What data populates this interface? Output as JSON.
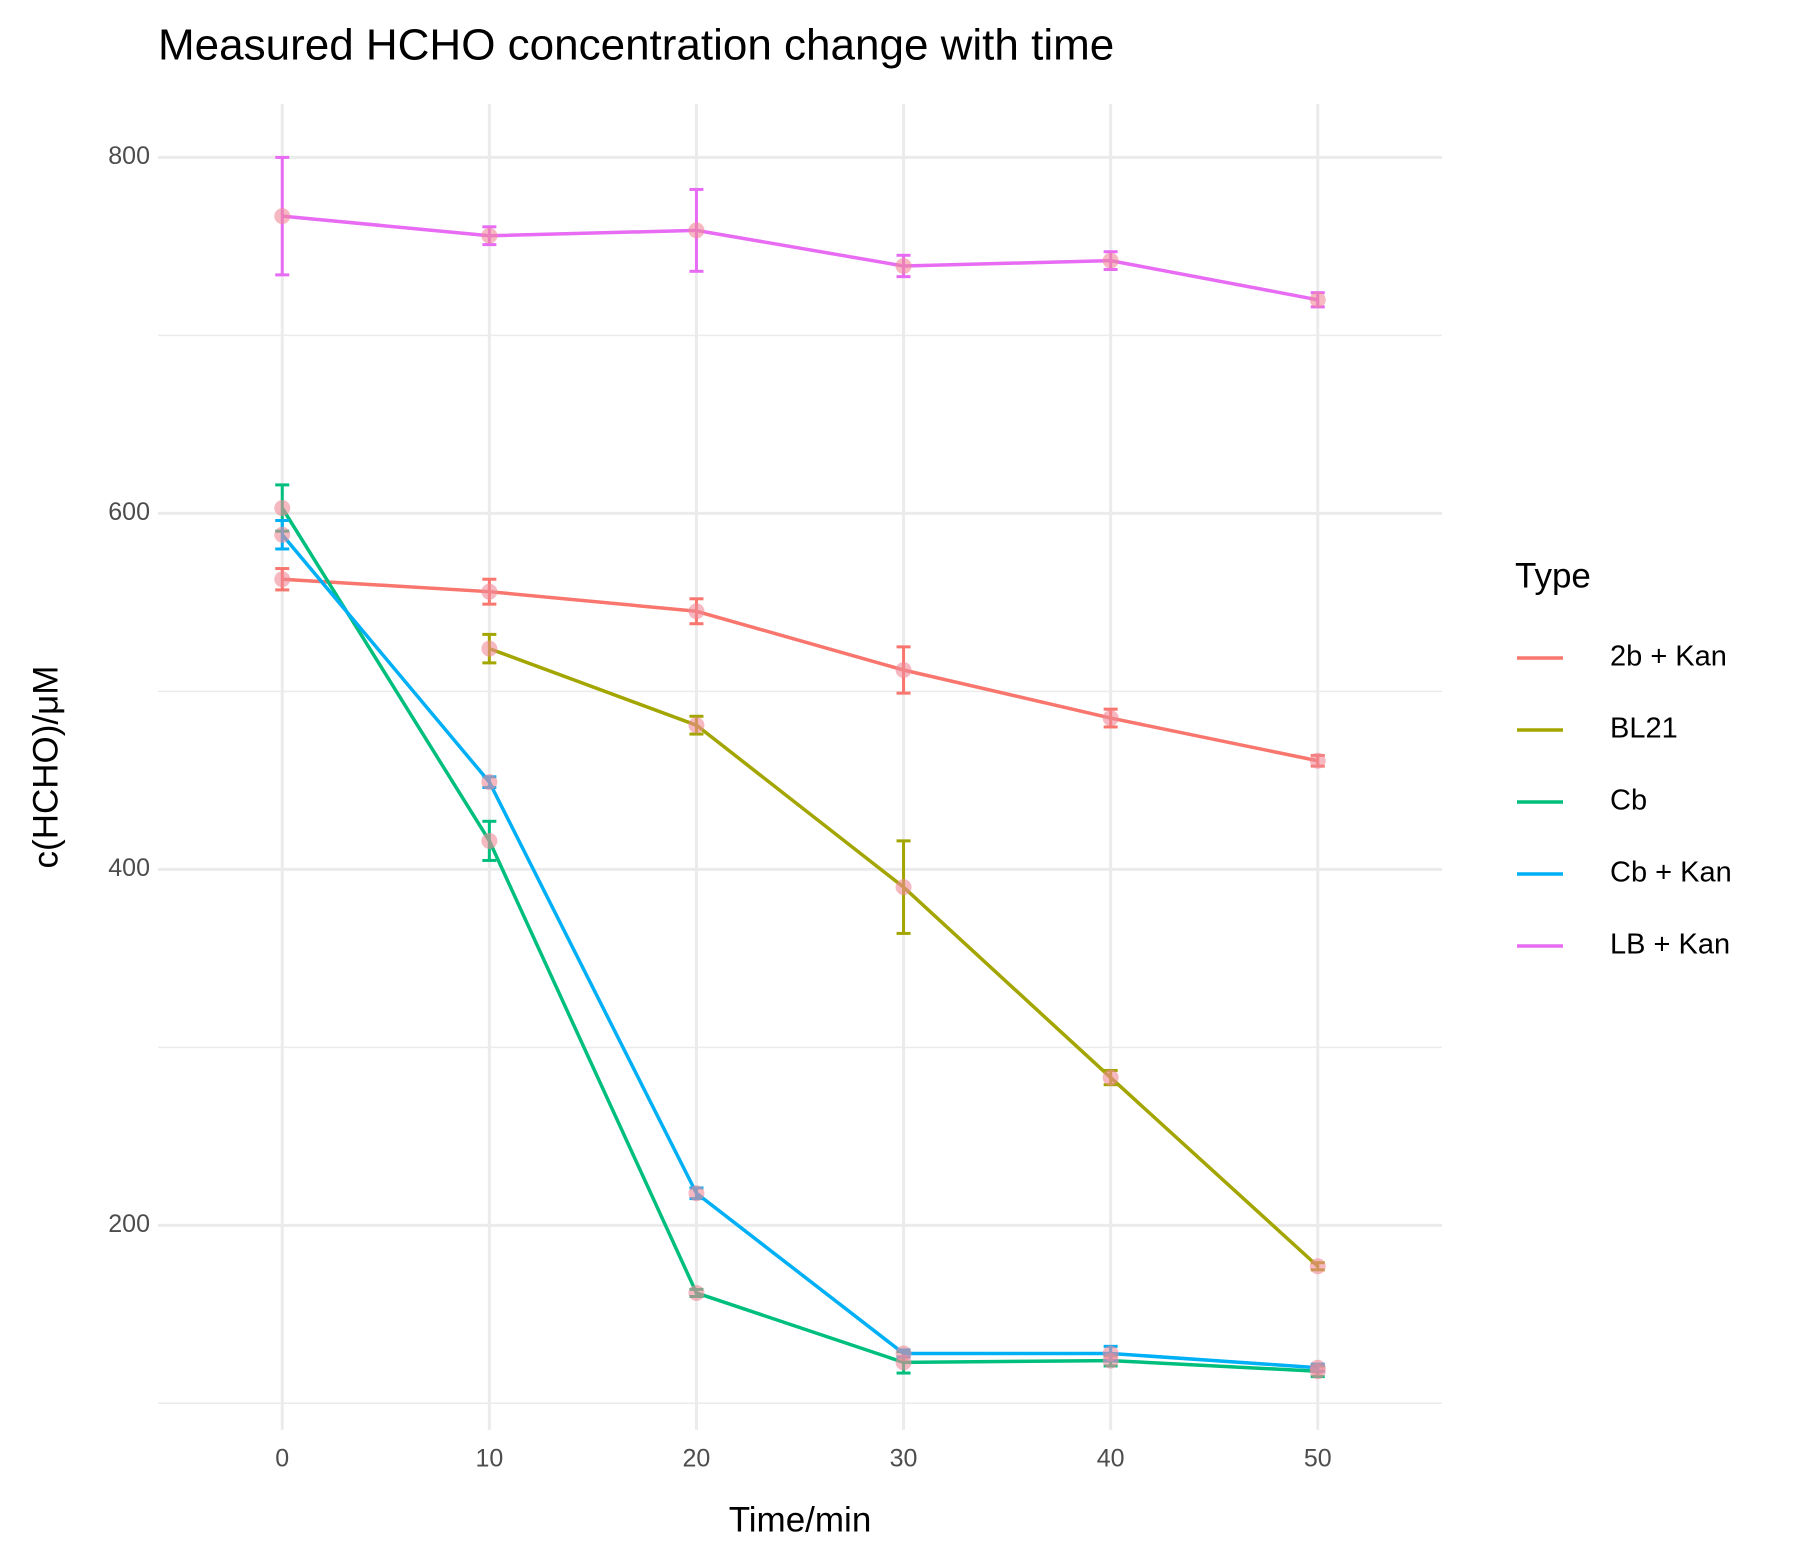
{
  "chart_data": {
    "type": "line",
    "title": "Measured HCHO concentration change with time",
    "x_label": "Time/min",
    "y_label": "c(HCHO)/μM",
    "legend_title": "Type",
    "legend_position": "right",
    "grid": true,
    "point_color": "#f08a9a",
    "x": [
      0,
      10,
      20,
      30,
      40,
      50
    ],
    "xlim": [
      -6,
      56
    ],
    "xticks": [
      0,
      10,
      20,
      30,
      40,
      50
    ],
    "ylim": [
      85,
      830
    ],
    "yticks": [
      200,
      400,
      600,
      800
    ],
    "yminor": [
      100,
      300,
      500,
      700
    ],
    "series": [
      {
        "name": "2b + Kan",
        "color": "#f8766d",
        "values": [
          563,
          556,
          545,
          512,
          485,
          461
        ],
        "errors": [
          6,
          7,
          7,
          13,
          5,
          3
        ]
      },
      {
        "name": "BL21",
        "color": "#a3a500",
        "values": [
          null,
          524,
          481,
          390,
          283,
          177
        ],
        "errors": [
          null,
          8,
          5,
          26,
          4,
          2
        ]
      },
      {
        "name": "Cb",
        "color": "#00bf7d",
        "values": [
          603,
          416,
          162,
          123,
          124,
          118
        ],
        "errors": [
          13,
          11,
          2,
          6,
          3,
          3
        ]
      },
      {
        "name": "Cb + Kan",
        "color": "#00b0f6",
        "values": [
          588,
          449,
          218,
          128,
          128,
          120
        ],
        "errors": [
          8,
          3,
          3,
          2,
          4,
          2
        ]
      },
      {
        "name": "LB + Kan",
        "color": "#e76bf3",
        "values": [
          767,
          756,
          759,
          739,
          742,
          720
        ],
        "errors": [
          33,
          5,
          23,
          6,
          5,
          4
        ]
      }
    ]
  }
}
